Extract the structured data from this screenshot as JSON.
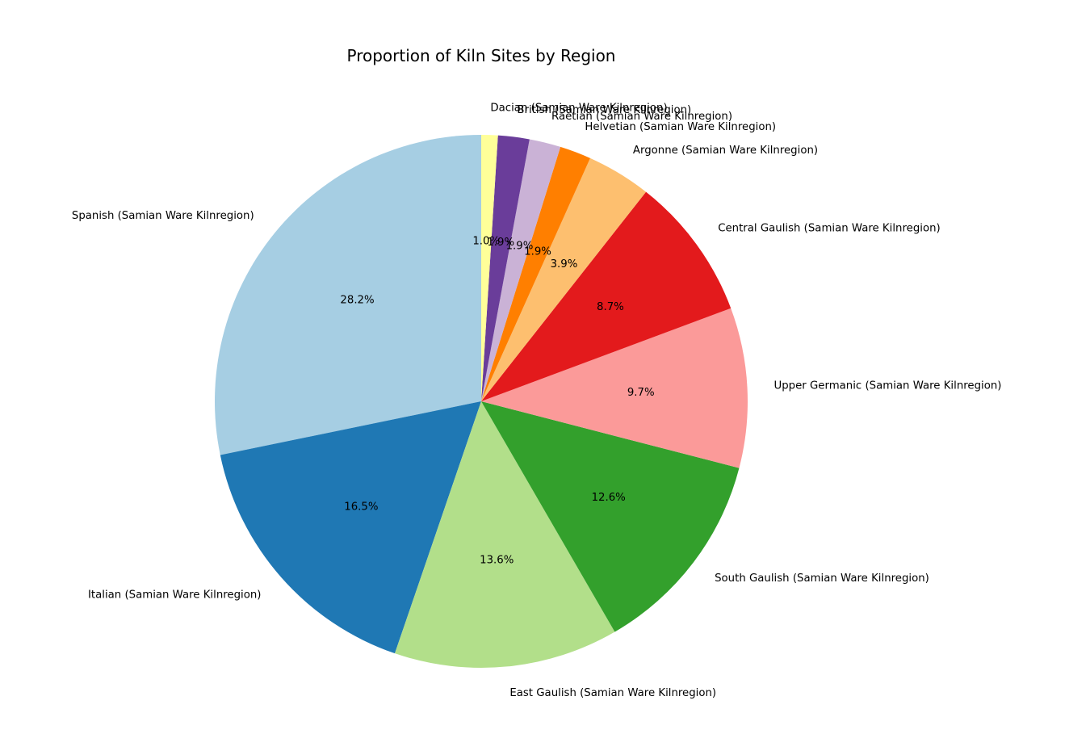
{
  "chart_data": {
    "type": "pie",
    "title": "Proportion of Kiln Sites by Region",
    "start_angle_deg": 90,
    "direction": "counterclockwise",
    "slices": [
      {
        "label": "Spanish (Samian Ware Kilnregion)",
        "value": 28.2,
        "pct_label": "28.2%",
        "color": "#a6cee3"
      },
      {
        "label": "Italian (Samian Ware Kilnregion)",
        "value": 16.5,
        "pct_label": "16.5%",
        "color": "#1f78b4"
      },
      {
        "label": "East Gaulish (Samian Ware Kilnregion)",
        "value": 13.6,
        "pct_label": "13.6%",
        "color": "#b2df8a"
      },
      {
        "label": "South Gaulish (Samian Ware Kilnregion)",
        "value": 12.6,
        "pct_label": "12.6%",
        "color": "#33a02c"
      },
      {
        "label": "Upper Germanic (Samian Ware Kilnregion)",
        "value": 9.7,
        "pct_label": "9.7%",
        "color": "#fb9a99"
      },
      {
        "label": "Central Gaulish (Samian Ware Kilnregion)",
        "value": 8.7,
        "pct_label": "8.7%",
        "color": "#e31a1c"
      },
      {
        "label": "Argonne (Samian Ware Kilnregion)",
        "value": 3.9,
        "pct_label": "3.9%",
        "color": "#fdbf6f"
      },
      {
        "label": "Helvetian (Samian Ware Kilnregion)",
        "value": 1.9,
        "pct_label": "1.9%",
        "color": "#ff7f00"
      },
      {
        "label": "Raetian (Samian Ware Kilnregion)",
        "value": 1.9,
        "pct_label": "1.9%",
        "color": "#cab2d6"
      },
      {
        "label": "British (Samian Ware Kilnregion)",
        "value": 1.9,
        "pct_label": "1.9%",
        "color": "#6a3d9a"
      },
      {
        "label": "Dacian (Samian Ware Kilnregion)",
        "value": 1.0,
        "pct_label": "1.0%",
        "color": "#ffff99"
      }
    ]
  }
}
